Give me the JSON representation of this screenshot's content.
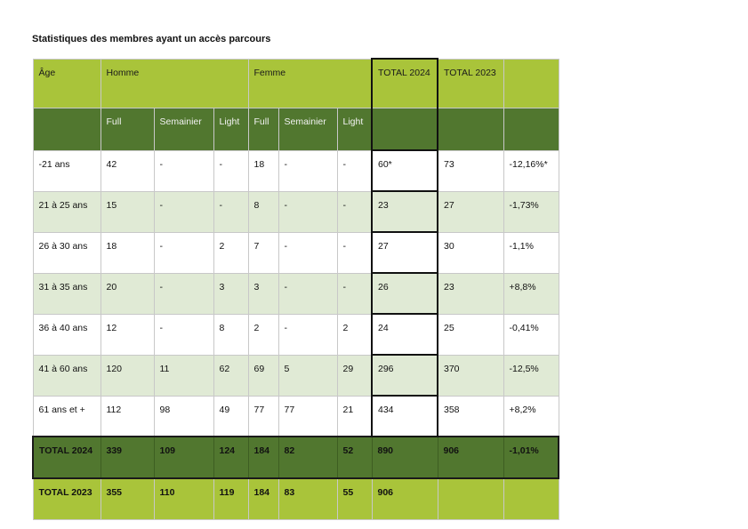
{
  "title": "Statistiques des membres ayant un accès parcours",
  "colors": {
    "header_light": "#a9c43a",
    "header_dark": "#51772f",
    "row_alt": "#e0ead5"
  },
  "header": {
    "age": "Âge",
    "homme": "Homme",
    "femme": "Femme",
    "total2024": "TOTAL 2024",
    "total2023": "TOTAL 2023",
    "change": ""
  },
  "subheader": [
    "",
    "Full",
    "Semainier",
    "Light",
    "Full",
    "Semainier",
    "Light",
    "",
    "",
    ""
  ],
  "rows": [
    [
      "-21 ans",
      "42",
      "-",
      "-",
      "18",
      "-",
      "-",
      "60*",
      "73",
      "-12,16%*"
    ],
    [
      "21 à 25 ans",
      "15",
      "-",
      "-",
      "8",
      "-",
      "-",
      "23",
      "27",
      "-1,73%"
    ],
    [
      "26 à 30 ans",
      "18",
      "-",
      "2",
      "7",
      "-",
      "-",
      "27",
      "30",
      "-1,1%"
    ],
    [
      "31 à 35 ans",
      "20",
      "-",
      "3",
      "3",
      "-",
      "-",
      "26",
      "23",
      "+8,8%"
    ],
    [
      "36 à 40 ans",
      "12",
      "-",
      "8",
      "2",
      "-",
      "2",
      "24",
      "25",
      "-0,41%"
    ],
    [
      "41 à 60 ans",
      "120",
      "11",
      "62",
      "69",
      "5",
      "29",
      "296",
      "370",
      "-12,5%"
    ],
    [
      "61 ans et +",
      "112",
      "98",
      "49",
      "77",
      "77",
      "21",
      "434",
      "358",
      "+8,2%"
    ]
  ],
  "total_2024": [
    "TOTAL 2024",
    "339",
    "109",
    "124",
    "184",
    "82",
    "52",
    "890",
    "906",
    "-1,01%"
  ],
  "total_2023": [
    "TOTAL 2023",
    "355",
    "110",
    "119",
    "184",
    "83",
    "55",
    "906",
    "",
    ""
  ]
}
